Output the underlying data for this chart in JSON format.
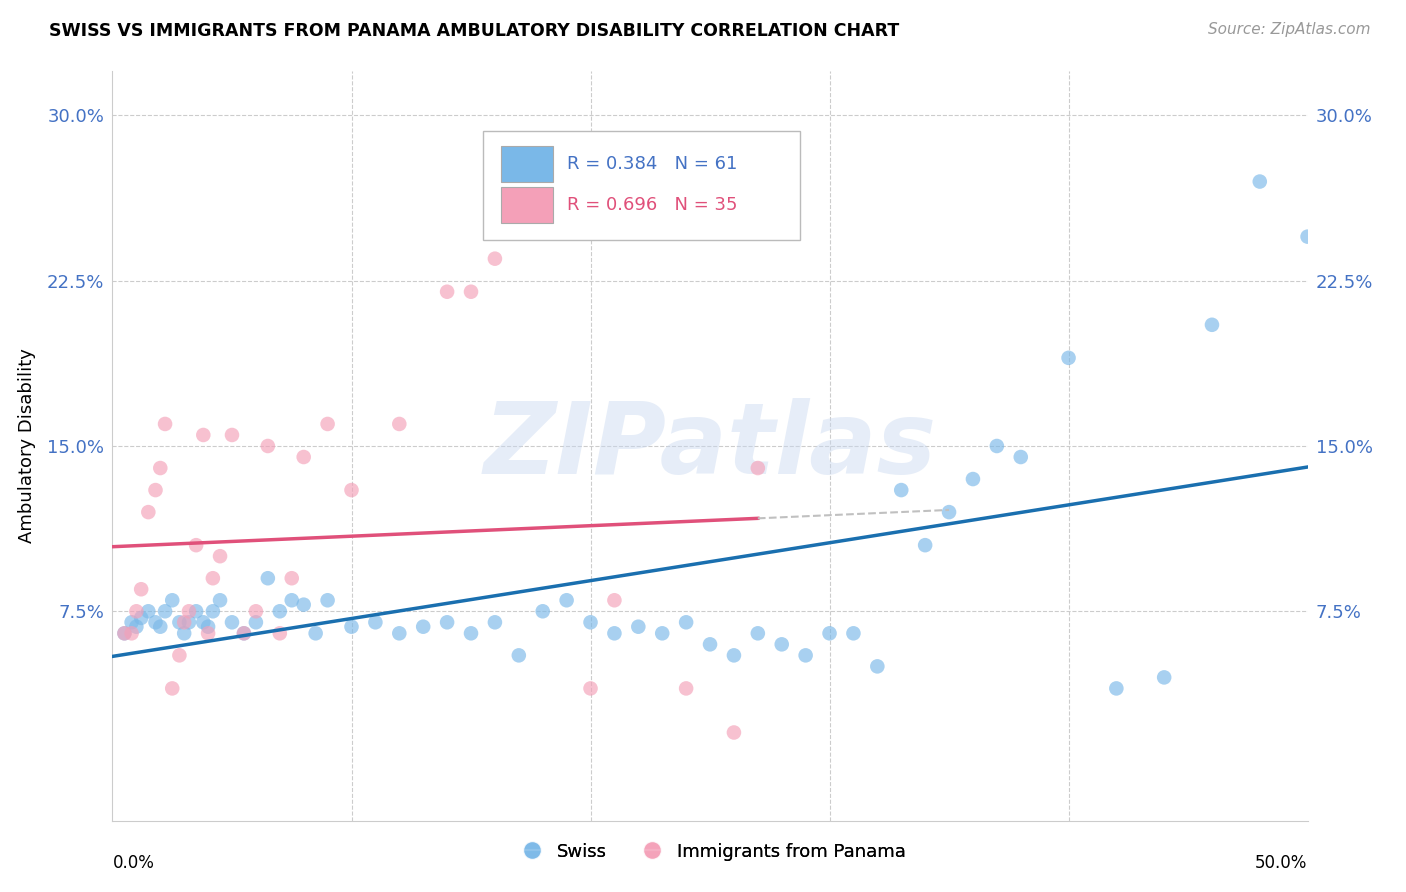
{
  "title": "SWISS VS IMMIGRANTS FROM PANAMA AMBULATORY DISABILITY CORRELATION CHART",
  "source": "Source: ZipAtlas.com",
  "ylabel": "Ambulatory Disability",
  "ytick_labels": [
    "7.5%",
    "15.0%",
    "22.5%",
    "30.0%"
  ],
  "ytick_values": [
    7.5,
    15.0,
    22.5,
    30.0
  ],
  "xlim": [
    0.0,
    50.0
  ],
  "ylim": [
    -2.0,
    32.0
  ],
  "xtick_left": "0.0%",
  "xtick_right": "50.0%",
  "swiss_color": "#7ab8e8",
  "swiss_line_color": "#1a6faf",
  "panama_color": "#f4a0b8",
  "panama_line_color": "#e0507a",
  "panama_dash_color": "#c0c0c0",
  "swiss_R": 0.384,
  "swiss_N": 61,
  "panama_R": 0.696,
  "panama_N": 35,
  "watermark_text": "ZIPatlas",
  "label_color": "#4472c4",
  "swiss_scatter_x": [
    0.5,
    0.8,
    1.0,
    1.2,
    1.5,
    1.8,
    2.0,
    2.2,
    2.5,
    2.8,
    3.0,
    3.2,
    3.5,
    3.8,
    4.0,
    4.2,
    4.5,
    5.0,
    5.5,
    6.0,
    6.5,
    7.0,
    7.5,
    8.0,
    8.5,
    9.0,
    10.0,
    11.0,
    12.0,
    13.0,
    14.0,
    15.0,
    16.0,
    17.0,
    18.0,
    19.0,
    20.0,
    21.0,
    22.0,
    23.0,
    24.0,
    25.0,
    26.0,
    27.0,
    28.0,
    29.0,
    30.0,
    31.0,
    32.0,
    33.0,
    34.0,
    35.0,
    36.0,
    37.0,
    38.0,
    40.0,
    42.0,
    44.0,
    46.0,
    48.0,
    50.0
  ],
  "swiss_scatter_y": [
    6.5,
    7.0,
    6.8,
    7.2,
    7.5,
    7.0,
    6.8,
    7.5,
    8.0,
    7.0,
    6.5,
    7.0,
    7.5,
    7.0,
    6.8,
    7.5,
    8.0,
    7.0,
    6.5,
    7.0,
    9.0,
    7.5,
    8.0,
    7.8,
    6.5,
    8.0,
    6.8,
    7.0,
    6.5,
    6.8,
    7.0,
    6.5,
    7.0,
    5.5,
    7.5,
    8.0,
    7.0,
    6.5,
    6.8,
    6.5,
    7.0,
    6.0,
    5.5,
    6.5,
    6.0,
    5.5,
    6.5,
    6.5,
    5.0,
    13.0,
    10.5,
    12.0,
    13.5,
    15.0,
    14.5,
    19.0,
    4.0,
    4.5,
    20.5,
    27.0,
    24.5
  ],
  "panama_scatter_x": [
    0.5,
    0.8,
    1.0,
    1.2,
    1.5,
    1.8,
    2.0,
    2.2,
    2.5,
    2.8,
    3.0,
    3.2,
    3.5,
    3.8,
    4.0,
    4.2,
    4.5,
    5.0,
    5.5,
    6.0,
    6.5,
    7.0,
    7.5,
    8.0,
    9.0,
    10.0,
    12.0,
    14.0,
    15.0,
    16.0,
    20.0,
    21.0,
    24.0,
    26.0,
    27.0
  ],
  "panama_scatter_y": [
    6.5,
    6.5,
    7.5,
    8.5,
    12.0,
    13.0,
    14.0,
    16.0,
    4.0,
    5.5,
    7.0,
    7.5,
    10.5,
    15.5,
    6.5,
    9.0,
    10.0,
    15.5,
    6.5,
    7.5,
    15.0,
    6.5,
    9.0,
    14.5,
    16.0,
    13.0,
    16.0,
    22.0,
    22.0,
    23.5,
    4.0,
    8.0,
    4.0,
    2.0,
    14.0
  ]
}
